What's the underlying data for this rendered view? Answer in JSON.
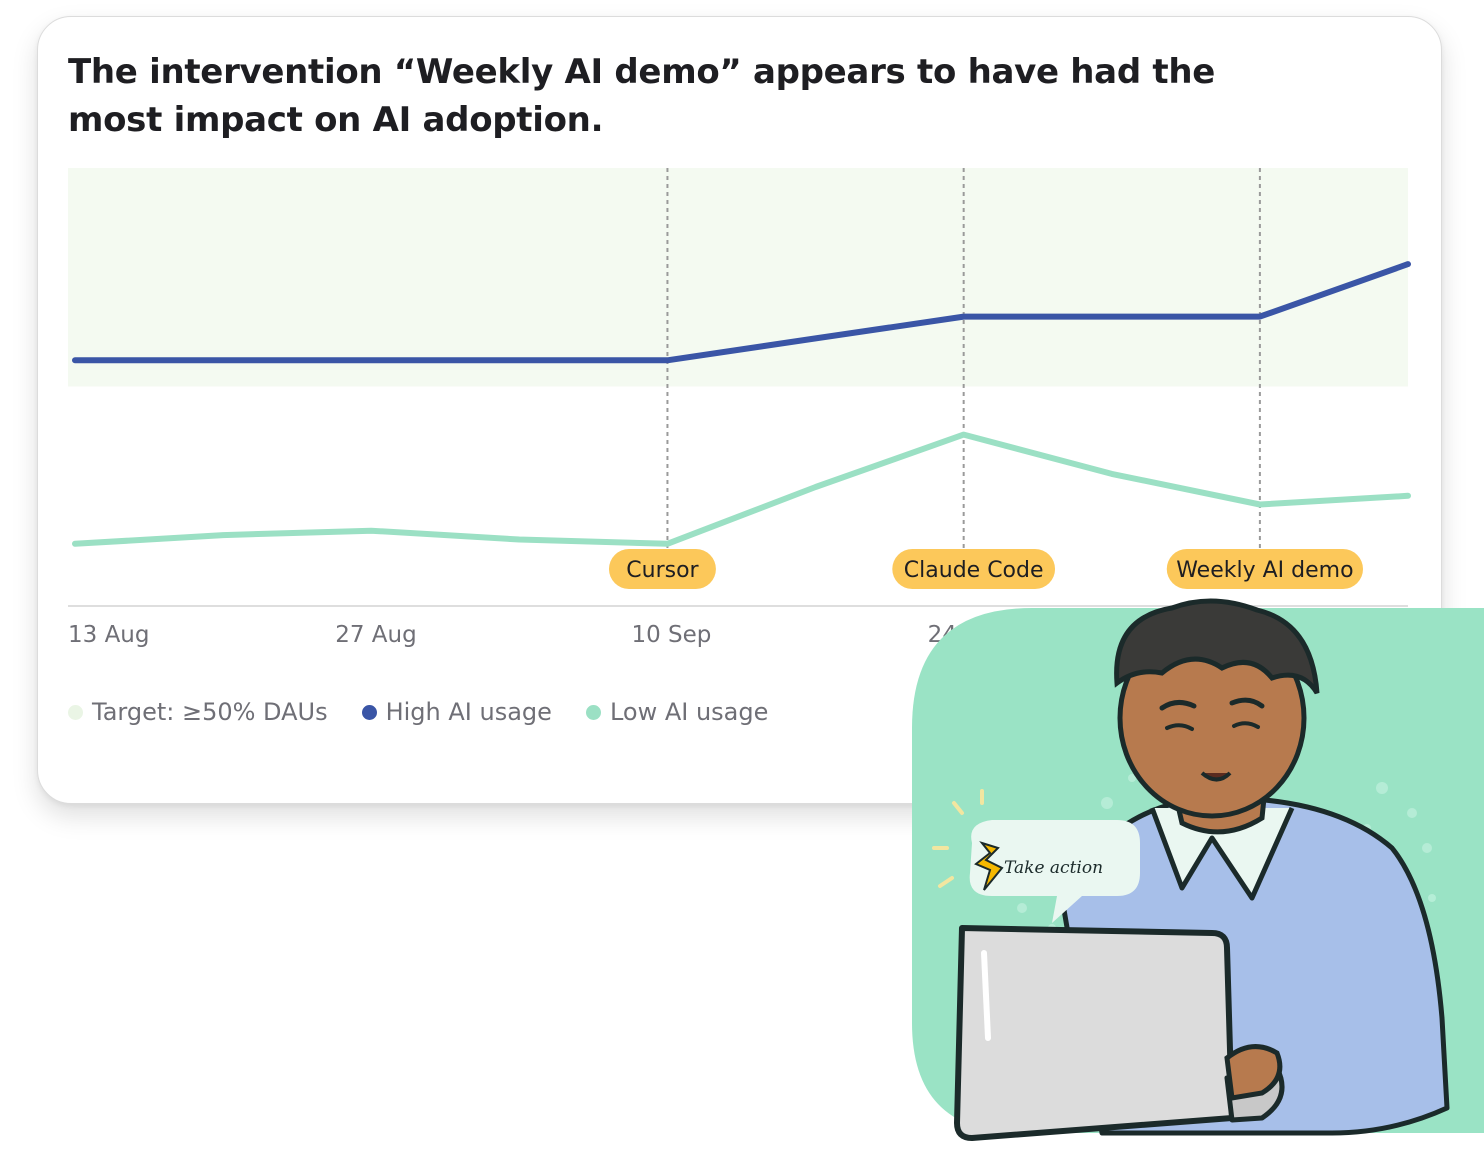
{
  "headline": "The intervention “Weekly AI demo” appears to have had the most impact on AI adoption.",
  "colors": {
    "high": "#3a55a6",
    "low": "#9be0c4",
    "target_band": "#f4faf1",
    "badge": "#fcc85a",
    "illustration_bg": "#9ae3c5"
  },
  "chart_data": {
    "type": "line",
    "title": "The intervention “Weekly AI demo” appears to have had the most impact on AI adoption.",
    "x_ticks": [
      "13 Aug",
      "27 Aug",
      "10 Sep",
      "24 Sep"
    ],
    "x": [
      "13 Aug",
      "20 Aug",
      "27 Aug",
      "3 Sep",
      "10 Sep",
      "17 Sep",
      "24 Sep",
      "1 Oct",
      "8 Oct",
      "15 Oct"
    ],
    "series": [
      {
        "name": "High AI usage",
        "values": [
          56,
          56,
          56,
          56,
          56,
          61,
          66,
          66,
          66,
          78
        ]
      },
      {
        "name": "Low AI usage",
        "values": [
          14,
          16,
          17,
          15,
          14,
          27,
          39,
          30,
          23,
          25
        ]
      }
    ],
    "target": {
      "label": "Target: ≥50% DAUs",
      "min": 50
    },
    "ylim": [
      0,
      100
    ],
    "grid": false,
    "legend_position": "bottom-left",
    "annotations": [
      {
        "label": "Cursor",
        "x": "10 Sep"
      },
      {
        "label": "Claude Code",
        "x": "24 Sep"
      },
      {
        "label": "Weekly AI demo",
        "x": "8 Oct"
      }
    ]
  },
  "illustration": {
    "bubble_text": "Take action"
  }
}
